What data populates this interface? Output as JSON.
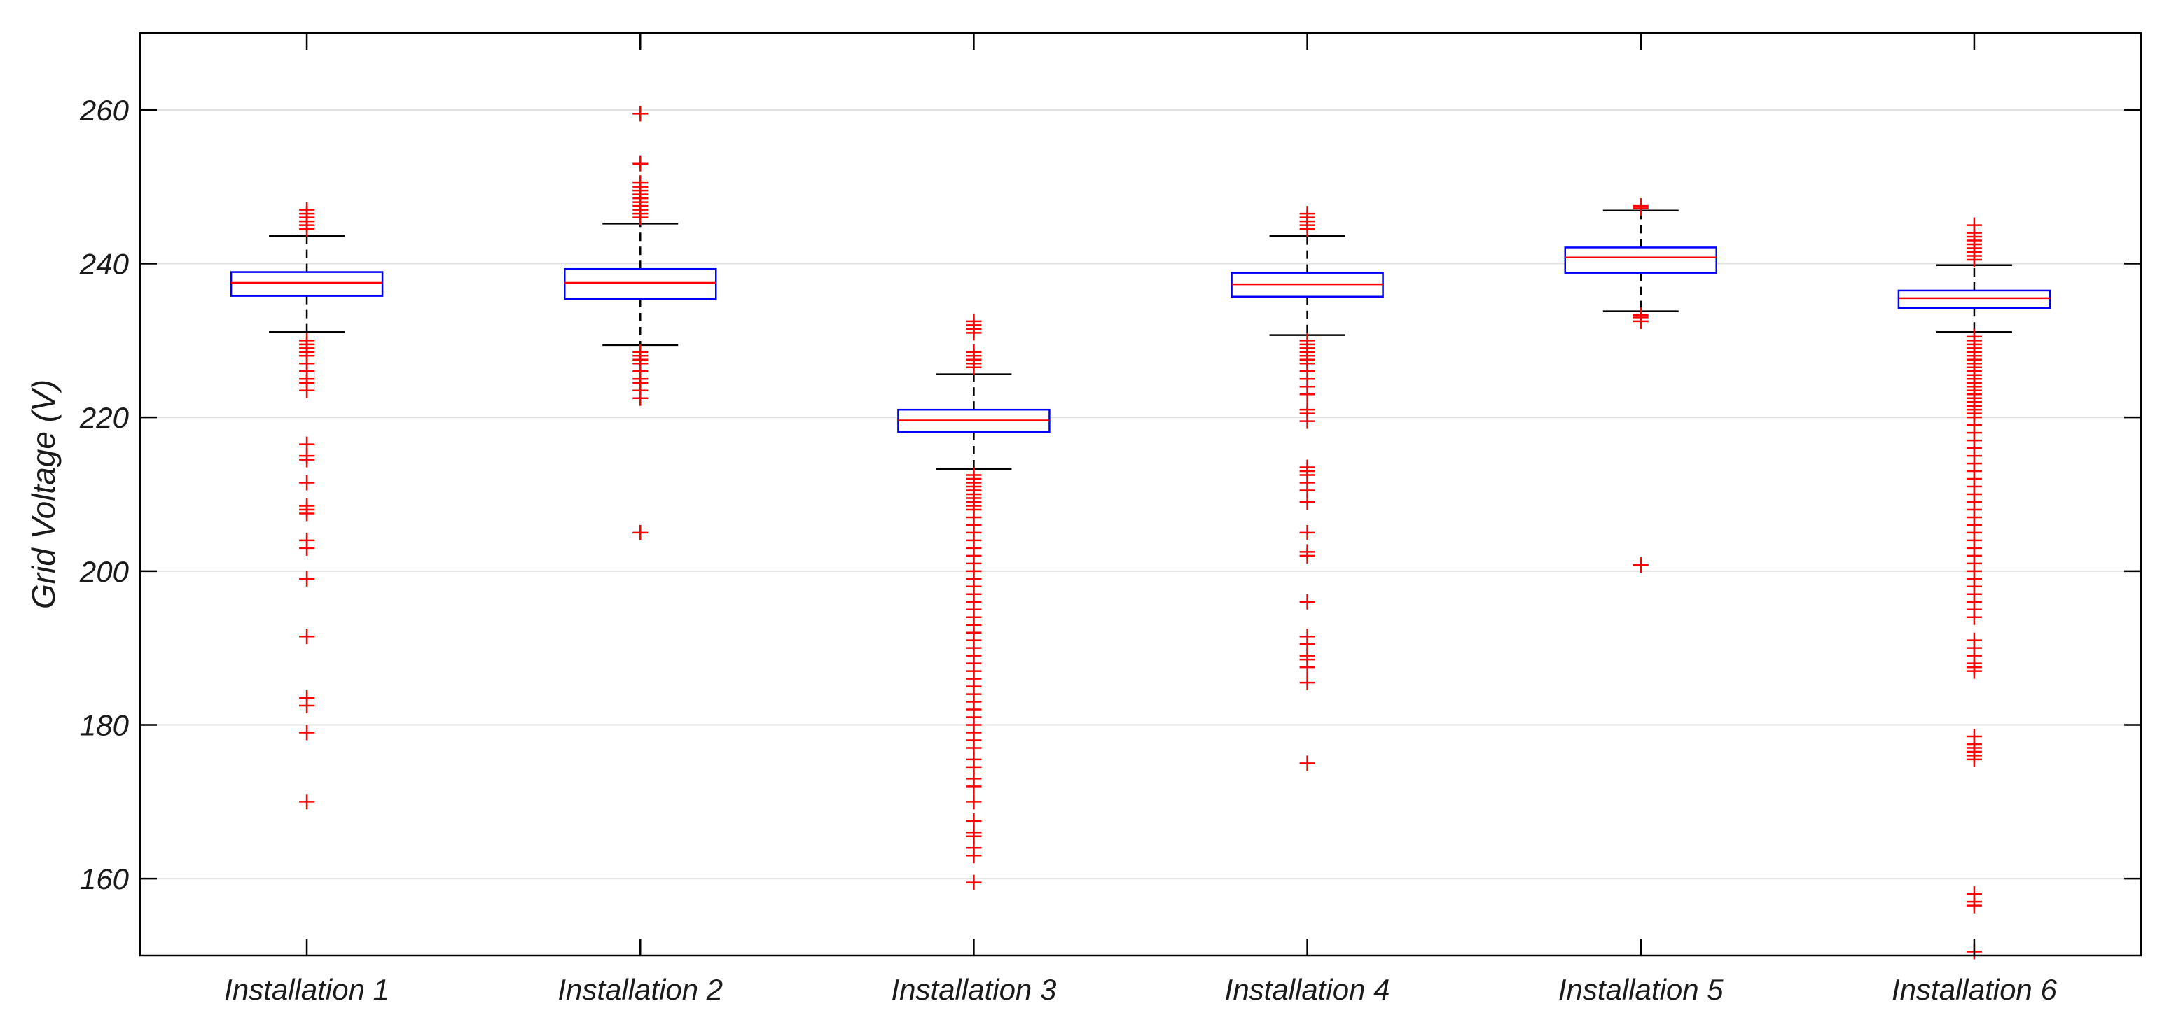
{
  "chart_data": {
    "type": "box",
    "title": "",
    "xlabel": "",
    "ylabel": "Grid Voltage (V)",
    "ylim": [
      150,
      270
    ],
    "yticks": [
      160,
      180,
      200,
      220,
      240,
      260
    ],
    "grid": true,
    "colors": {
      "box": "#0000ff",
      "median": "#ff0000",
      "whisker": "#000000",
      "outlier": "#ff0000",
      "grid": "#e0e0e0"
    },
    "categories": [
      "Installation 1",
      "Installation 2",
      "Installation 3",
      "Installation 4",
      "Installation 5",
      "Installation 6"
    ],
    "boxes": [
      {
        "name": "Installation 1",
        "q1": 235.8,
        "median": 237.5,
        "q3": 238.9,
        "whisker_low": 231.1,
        "whisker_high": 243.6,
        "outliers": [
          247.0,
          246.5,
          246.0,
          245.5,
          245.0,
          244.5,
          230.0,
          229.5,
          229.0,
          228.5,
          228.0,
          227.0,
          226.0,
          225.0,
          224.5,
          223.5,
          216.5,
          215.0,
          214.5,
          211.5,
          208.5,
          208.0,
          207.5,
          204.0,
          203.0,
          199.0,
          191.5,
          183.5,
          182.5,
          179.0,
          170.0
        ]
      },
      {
        "name": "Installation 2",
        "q1": 235.4,
        "median": 237.5,
        "q3": 239.3,
        "whisker_low": 229.4,
        "whisker_high": 245.2,
        "outliers": [
          259.5,
          253.0,
          250.5,
          250.0,
          249.5,
          249.0,
          248.5,
          248.0,
          247.5,
          247.0,
          246.5,
          246.0,
          228.5,
          228.0,
          227.5,
          227.0,
          226.0,
          225.0,
          224.5,
          223.5,
          222.5,
          205.0
        ]
      },
      {
        "name": "Installation 3",
        "q1": 218.1,
        "median": 219.6,
        "q3": 221.0,
        "whisker_low": 213.3,
        "whisker_high": 225.6,
        "outliers": [
          232.5,
          232.0,
          231.5,
          231.0,
          228.5,
          228.0,
          227.5,
          227.0,
          226.5,
          212.5,
          212.0,
          211.5,
          211.0,
          210.5,
          210.0,
          209.5,
          209.0,
          208.5,
          208.0,
          207.0,
          206.0,
          205.0,
          204.0,
          203.0,
          202.0,
          201.0,
          200.0,
          199.0,
          198.0,
          197.0,
          196.0,
          195.0,
          194.0,
          193.0,
          192.0,
          191.0,
          190.0,
          189.0,
          188.0,
          187.0,
          186.0,
          185.0,
          184.0,
          183.0,
          182.0,
          181.0,
          180.0,
          179.0,
          178.0,
          177.0,
          175.5,
          174.5,
          173.0,
          172.0,
          170.0,
          167.5,
          166.0,
          165.5,
          164.0,
          163.0,
          159.5
        ]
      },
      {
        "name": "Installation 4",
        "q1": 235.7,
        "median": 237.3,
        "q3": 238.8,
        "whisker_low": 230.7,
        "whisker_high": 243.6,
        "outliers": [
          246.5,
          246.0,
          245.5,
          245.0,
          244.5,
          230.0,
          229.5,
          229.0,
          228.5,
          228.0,
          227.5,
          227.0,
          226.0,
          225.0,
          224.0,
          223.0,
          221.0,
          220.5,
          219.5,
          213.5,
          213.0,
          212.5,
          211.5,
          210.5,
          209.0,
          205.0,
          202.5,
          202.0,
          196.0,
          191.5,
          190.5,
          189.0,
          188.5,
          187.5,
          185.5,
          175.0
        ]
      },
      {
        "name": "Installation 5",
        "q1": 238.8,
        "median": 240.8,
        "q3": 242.1,
        "whisker_low": 233.8,
        "whisker_high": 246.9,
        "outliers": [
          247.5,
          247.2,
          233.3,
          233.0,
          232.5,
          200.8
        ]
      },
      {
        "name": "Installation 6",
        "q1": 234.2,
        "median": 235.5,
        "q3": 236.5,
        "whisker_low": 231.1,
        "whisker_high": 239.8,
        "outliers": [
          245.0,
          244.0,
          243.5,
          243.0,
          242.5,
          242.0,
          241.5,
          241.0,
          240.5,
          230.5,
          230.0,
          229.5,
          229.0,
          228.5,
          228.0,
          227.5,
          227.0,
          226.5,
          226.0,
          225.5,
          225.0,
          224.5,
          224.0,
          223.5,
          223.0,
          222.5,
          222.0,
          221.5,
          221.0,
          220.5,
          220.0,
          219.0,
          218.0,
          217.0,
          216.0,
          215.0,
          214.0,
          213.0,
          212.0,
          211.0,
          210.0,
          209.0,
          208.0,
          207.0,
          206.0,
          205.0,
          204.0,
          203.0,
          202.0,
          201.0,
          200.0,
          199.0,
          198.0,
          197.0,
          196.0,
          195.0,
          194.0,
          191.0,
          190.0,
          189.0,
          188.0,
          187.5,
          187.0,
          178.5,
          177.5,
          177.0,
          176.5,
          176.0,
          175.5,
          158.0,
          157.0,
          156.5,
          150.5
        ]
      }
    ]
  }
}
